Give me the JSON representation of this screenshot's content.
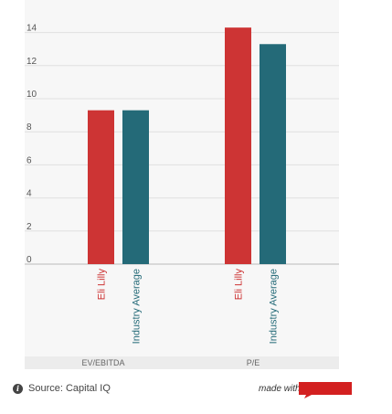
{
  "chart_data": {
    "type": "bar",
    "groups": [
      {
        "name": "EV/EBITDA",
        "series": [
          {
            "name": "Eli Lilly",
            "value": 9.3
          },
          {
            "name": "Industry Average",
            "value": 9.3
          }
        ]
      },
      {
        "name": "P/E",
        "series": [
          {
            "name": "Eli Lilly",
            "value": 14.3
          },
          {
            "name": "Industry Average",
            "value": 13.3
          }
        ]
      }
    ],
    "series_names": [
      "Eli Lilly",
      "Industry Average"
    ],
    "yticks": [
      "0",
      "2",
      "4",
      "6",
      "8",
      "10",
      "12",
      "14"
    ],
    "ylim": [
      0,
      15.5
    ],
    "grid": true,
    "legend": "none"
  },
  "colors": {
    "eli_lilly": "#cd3434",
    "industry_average": "#246a78"
  },
  "footer": {
    "source": "Source: Capital IQ",
    "made_with": "made with",
    "icon": "info-icon"
  }
}
